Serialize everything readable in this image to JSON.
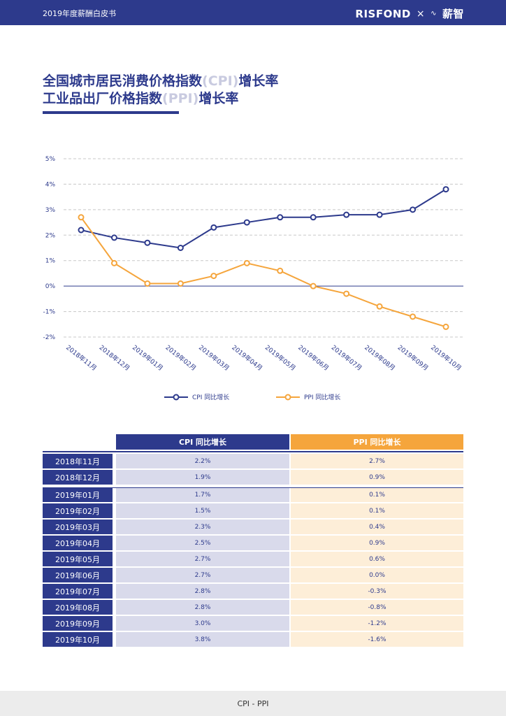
{
  "header": {
    "doc_title": "2019年度薪酬白皮书",
    "brand_left": "RISFOND",
    "brand_sep": "×",
    "brand_icon": "∿",
    "brand_right": "薪智"
  },
  "heading": {
    "line1_a": "全国城市居民消费价格指数",
    "line1_b": "(CPI)",
    "line1_c": "增长率",
    "line2_a": "工业品出厂价格指数",
    "line2_b": "(PPI)",
    "line2_c": "增长率"
  },
  "colors": {
    "cpi": "#2d3a8c",
    "ppi": "#f5a53c"
  },
  "chart_data": {
    "type": "line",
    "categories": [
      "2018年11月",
      "2018年12月",
      "2019年01月",
      "2019年02月",
      "2019年03月",
      "2019年04月",
      "2019年05月",
      "2019年06月",
      "2019年07月",
      "2019年08月",
      "2019年09月",
      "2019年10月"
    ],
    "series": [
      {
        "name": "CPI 同比增长",
        "values": [
          2.2,
          1.9,
          1.7,
          1.5,
          2.3,
          2.5,
          2.7,
          2.7,
          2.8,
          2.8,
          3.0,
          3.8
        ]
      },
      {
        "name": "PPI 同比增长",
        "values": [
          2.7,
          0.9,
          0.1,
          0.1,
          0.4,
          0.9,
          0.6,
          0.0,
          -0.3,
          -0.8,
          -1.2,
          -1.6
        ]
      }
    ],
    "ylim": [
      -2,
      5
    ],
    "yticks": [
      5,
      4,
      3,
      2,
      1,
      0,
      -1,
      -2
    ],
    "ytick_labels": [
      "5%",
      "4%",
      "3%",
      "2%",
      "1%",
      "0%",
      "-1%",
      "-2%"
    ],
    "legend": [
      "CPI 同比增长",
      "PPI 同比增长"
    ],
    "legend_position": "bottom-center",
    "grid": true
  },
  "table": {
    "header_cpi": "CPI 同比增长",
    "header_ppi": "PPI 同比增长",
    "rows": [
      {
        "date": "2018年11月",
        "cpi": "2.2%",
        "ppi": "2.7%"
      },
      {
        "date": "2018年12月",
        "cpi": "1.9%",
        "ppi": "0.9%"
      },
      {
        "date": "2019年01月",
        "cpi": "1.7%",
        "ppi": "0.1%"
      },
      {
        "date": "2019年02月",
        "cpi": "1.5%",
        "ppi": "0.1%"
      },
      {
        "date": "2019年03月",
        "cpi": "2.3%",
        "ppi": "0.4%"
      },
      {
        "date": "2019年04月",
        "cpi": "2.5%",
        "ppi": "0.9%"
      },
      {
        "date": "2019年05月",
        "cpi": "2.7%",
        "ppi": "0.6%"
      },
      {
        "date": "2019年06月",
        "cpi": "2.7%",
        "ppi": "0.0%"
      },
      {
        "date": "2019年07月",
        "cpi": "2.8%",
        "ppi": "-0.3%"
      },
      {
        "date": "2019年08月",
        "cpi": "2.8%",
        "ppi": "-0.8%"
      },
      {
        "date": "2019年09月",
        "cpi": "3.0%",
        "ppi": "-1.2%"
      },
      {
        "date": "2019年10月",
        "cpi": "3.8%",
        "ppi": "-1.6%"
      }
    ]
  },
  "footer": {
    "text": "CPI - PPI"
  }
}
